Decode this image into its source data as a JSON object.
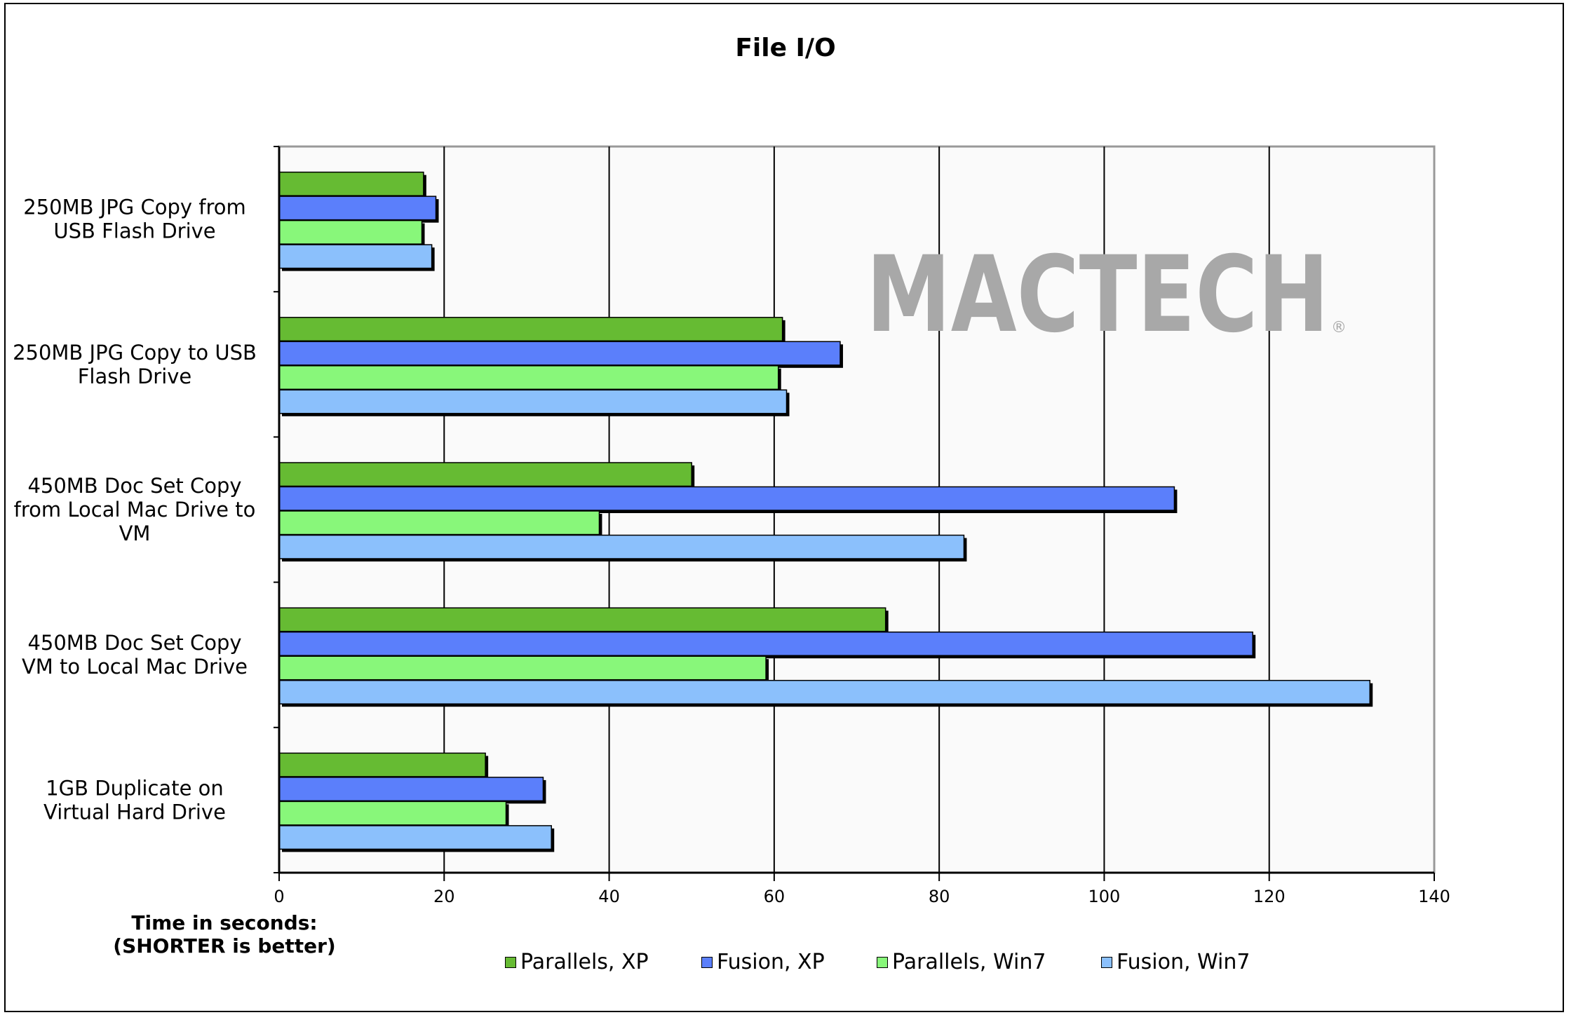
{
  "chart_data": {
    "type": "bar",
    "orientation": "horizontal",
    "title": "File I/O",
    "xlabel": "Time in seconds:",
    "xlabel_note": "(SHORTER is better)",
    "xlim": [
      0,
      140
    ],
    "xticks": [
      0,
      20,
      40,
      60,
      80,
      100,
      120,
      140
    ],
    "grid": true,
    "legend_position": "bottom",
    "categories": [
      "250MB JPG Copy from USB Flash Drive",
      "250MB JPG Copy to USB Flash Drive",
      "450MB Doc Set Copy from Local Mac Drive to VM",
      "450MB Doc Set Copy VM to Local Mac Drive",
      "1GB Duplicate on Virtual Hard Drive"
    ],
    "category_lines": [
      [
        "250MB JPG Copy from",
        "USB Flash Drive"
      ],
      [
        "250MB JPG Copy to USB",
        "Flash Drive"
      ],
      [
        "450MB Doc Set Copy",
        "from Local Mac Drive to",
        "VM"
      ],
      [
        "450MB Doc Set Copy",
        "VM to Local Mac Drive"
      ],
      [
        "1GB Duplicate on",
        "Virtual Hard Drive"
      ]
    ],
    "series": [
      {
        "name": "Parallels, XP",
        "color": "#66bb33",
        "values": [
          17.5,
          61,
          50,
          73.5,
          25
        ]
      },
      {
        "name": "Fusion, XP",
        "color": "#5b7ffb",
        "values": [
          19,
          68,
          108.5,
          118,
          32
        ]
      },
      {
        "name": "Parallels, Win7",
        "color": "#88f77a",
        "values": [
          17.3,
          60.5,
          38.8,
          59,
          27.5
        ]
      },
      {
        "name": "Fusion, Win7",
        "color": "#8bc0fc",
        "values": [
          18.5,
          61.5,
          83,
          132.2,
          33
        ]
      }
    ],
    "watermark": "MACTECH"
  }
}
